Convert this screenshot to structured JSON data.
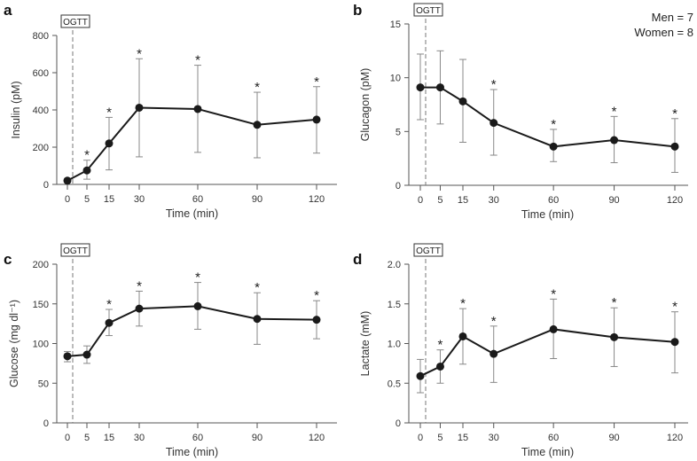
{
  "chart_data": [
    {
      "panel": "a",
      "type": "line",
      "xlabel": "Time (min)",
      "ylabel": "Insulin (pM)",
      "x": [
        0,
        5,
        15,
        30,
        60,
        90,
        120
      ],
      "ylim": [
        0,
        800
      ],
      "yticks": [
        0,
        200,
        400,
        600,
        800
      ],
      "values": [
        20,
        75,
        220,
        412,
        405,
        320,
        348
      ],
      "err_upper": [
        30,
        130,
        360,
        675,
        640,
        495,
        525
      ],
      "err_lower": [
        15,
        28,
        78,
        148,
        172,
        143,
        168
      ],
      "significant": [
        false,
        true,
        true,
        true,
        true,
        true,
        true
      ],
      "marker_label": "OGTT",
      "significance_symbol": "*"
    },
    {
      "panel": "b",
      "type": "line",
      "xlabel": "Time (min)",
      "ylabel": "Glucagon (pM)",
      "x": [
        0,
        5,
        15,
        30,
        60,
        90,
        120
      ],
      "ylim": [
        0,
        15
      ],
      "yticks": [
        0,
        5,
        10,
        15
      ],
      "values": [
        9.1,
        9.1,
        7.8,
        5.8,
        3.6,
        4.2,
        3.6
      ],
      "err_upper": [
        12.2,
        12.5,
        11.7,
        8.9,
        5.2,
        6.4,
        6.2
      ],
      "err_lower": [
        6.1,
        5.7,
        4.0,
        2.8,
        2.2,
        2.1,
        1.2
      ],
      "significant": [
        false,
        false,
        false,
        true,
        true,
        true,
        true
      ],
      "marker_label": "OGTT",
      "significance_symbol": "*",
      "annotation": [
        "Men = 7",
        "Women = 8"
      ]
    },
    {
      "panel": "c",
      "type": "line",
      "xlabel": "Time (min)",
      "ylabel": "Glucose (mg dl⁻¹)",
      "x": [
        0,
        5,
        15,
        30,
        60,
        90,
        120
      ],
      "ylim": [
        0,
        200
      ],
      "yticks": [
        0,
        50,
        100,
        150,
        200
      ],
      "values": [
        84,
        86,
        126,
        144,
        147,
        131,
        130
      ],
      "err_upper": [
        90,
        97,
        143,
        166,
        177,
        164,
        154
      ],
      "err_lower": [
        77,
        75,
        110,
        122,
        118,
        99,
        106
      ],
      "significant": [
        false,
        false,
        true,
        true,
        true,
        true,
        true
      ],
      "marker_label": "OGTT",
      "significance_symbol": "*"
    },
    {
      "panel": "d",
      "type": "line",
      "xlabel": "Time (min)",
      "ylabel": "Lactate (mM)",
      "x": [
        0,
        5,
        15,
        30,
        60,
        90,
        120
      ],
      "ylim": [
        0,
        2
      ],
      "yticks": [
        "0",
        "0.5",
        "1.0",
        "1.5",
        "2.0"
      ],
      "values": [
        0.59,
        0.71,
        1.09,
        0.87,
        1.18,
        1.08,
        1.02
      ],
      "err_upper": [
        0.8,
        0.92,
        1.44,
        1.22,
        1.56,
        1.45,
        1.4
      ],
      "err_lower": [
        0.38,
        0.5,
        0.74,
        0.51,
        0.81,
        0.71,
        0.63
      ],
      "significant": [
        false,
        true,
        true,
        true,
        true,
        true,
        true
      ],
      "marker_label": "OGTT",
      "significance_symbol": "*"
    }
  ],
  "colors": {
    "line": "#1a1a1a",
    "error": "#888888",
    "axis": "#555555",
    "dashed": "#777777"
  }
}
